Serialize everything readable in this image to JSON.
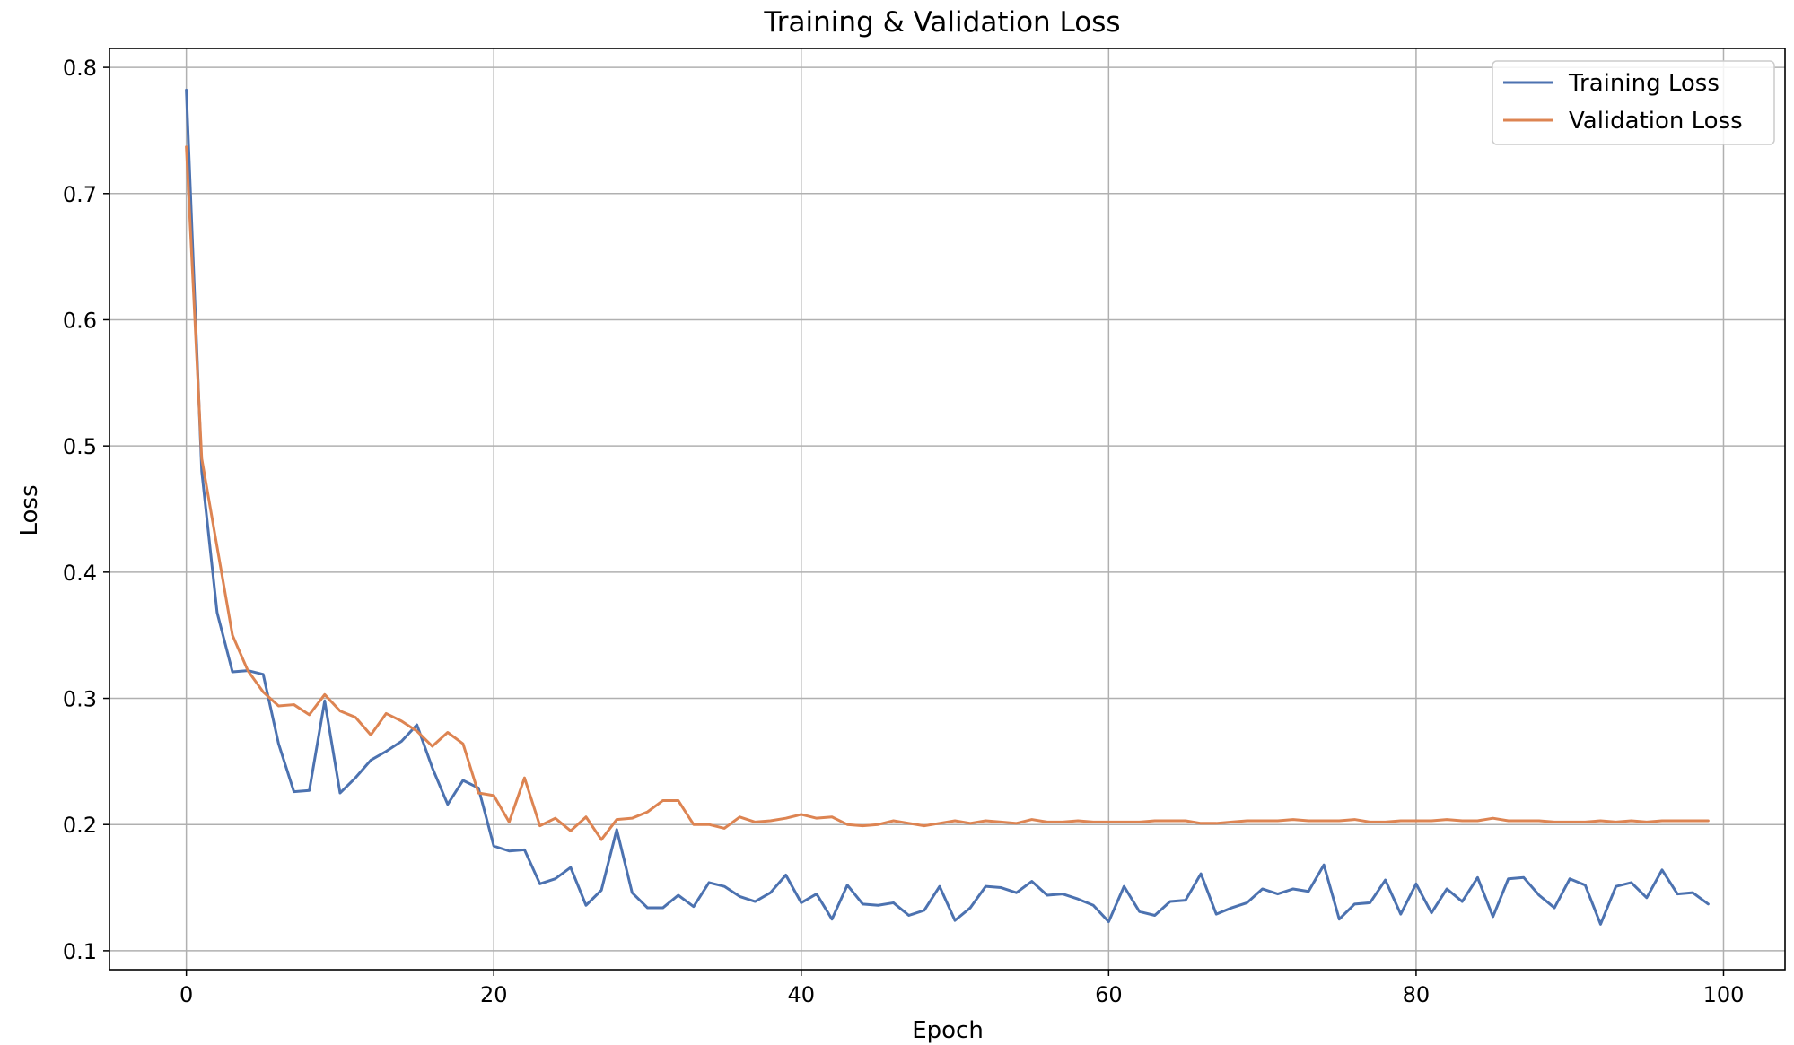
{
  "chart_data": {
    "type": "line",
    "title": "Training & Validation Loss",
    "xlabel": "Epoch",
    "ylabel": "Loss",
    "xlim": [
      -5,
      104
    ],
    "ylim": [
      0.085,
      0.815
    ],
    "xticks": [
      0,
      20,
      40,
      60,
      80,
      100
    ],
    "yticks": [
      0.1,
      0.2,
      0.3,
      0.4,
      0.5,
      0.6,
      0.7,
      0.8
    ],
    "grid": true,
    "legend_position": "top-right",
    "colors": {
      "training": "#4c72b0",
      "validation": "#dd8452"
    },
    "x": [
      0,
      1,
      2,
      3,
      4,
      5,
      6,
      7,
      8,
      9,
      10,
      11,
      12,
      13,
      14,
      15,
      16,
      17,
      18,
      19,
      20,
      21,
      22,
      23,
      24,
      25,
      26,
      27,
      28,
      29,
      30,
      31,
      32,
      33,
      34,
      35,
      36,
      37,
      38,
      39,
      40,
      41,
      42,
      43,
      44,
      45,
      46,
      47,
      48,
      49,
      50,
      51,
      52,
      53,
      54,
      55,
      56,
      57,
      58,
      59,
      60,
      61,
      62,
      63,
      64,
      65,
      66,
      67,
      68,
      69,
      70,
      71,
      72,
      73,
      74,
      75,
      76,
      77,
      78,
      79,
      80,
      81,
      82,
      83,
      84,
      85,
      86,
      87,
      88,
      89,
      90,
      91,
      92,
      93,
      94,
      95,
      96,
      97,
      98,
      99
    ],
    "series": [
      {
        "name": "Training Loss",
        "values": [
          0.782,
          0.48,
          0.368,
          0.321,
          0.322,
          0.319,
          0.264,
          0.226,
          0.227,
          0.298,
          0.225,
          0.237,
          0.251,
          0.258,
          0.266,
          0.279,
          0.245,
          0.216,
          0.235,
          0.229,
          0.183,
          0.179,
          0.18,
          0.153,
          0.157,
          0.166,
          0.136,
          0.148,
          0.196,
          0.146,
          0.134,
          0.134,
          0.144,
          0.135,
          0.154,
          0.151,
          0.143,
          0.139,
          0.146,
          0.16,
          0.138,
          0.145,
          0.125,
          0.152,
          0.137,
          0.136,
          0.138,
          0.128,
          0.132,
          0.151,
          0.124,
          0.134,
          0.151,
          0.15,
          0.146,
          0.155,
          0.144,
          0.145,
          0.141,
          0.136,
          0.123,
          0.151,
          0.131,
          0.128,
          0.139,
          0.14,
          0.161,
          0.129,
          0.134,
          0.138,
          0.149,
          0.145,
          0.149,
          0.147,
          0.168,
          0.125,
          0.137,
          0.138,
          0.156,
          0.129,
          0.153,
          0.13,
          0.149,
          0.139,
          0.158,
          0.127,
          0.157,
          0.158,
          0.144,
          0.134,
          0.157,
          0.152,
          0.121,
          0.151,
          0.154,
          0.142,
          0.164,
          0.145,
          0.146,
          0.137
        ]
      },
      {
        "name": "Validation Loss",
        "values": [
          0.737,
          0.49,
          0.42,
          0.35,
          0.322,
          0.305,
          0.294,
          0.295,
          0.287,
          0.303,
          0.29,
          0.285,
          0.271,
          0.288,
          0.282,
          0.274,
          0.262,
          0.273,
          0.264,
          0.225,
          0.223,
          0.202,
          0.237,
          0.199,
          0.205,
          0.195,
          0.206,
          0.188,
          0.204,
          0.205,
          0.21,
          0.219,
          0.219,
          0.2,
          0.2,
          0.197,
          0.206,
          0.202,
          0.203,
          0.205,
          0.208,
          0.205,
          0.206,
          0.2,
          0.199,
          0.2,
          0.203,
          0.201,
          0.199,
          0.201,
          0.203,
          0.201,
          0.203,
          0.202,
          0.201,
          0.204,
          0.202,
          0.202,
          0.203,
          0.202,
          0.202,
          0.202,
          0.202,
          0.203,
          0.203,
          0.203,
          0.201,
          0.201,
          0.202,
          0.203,
          0.203,
          0.203,
          0.204,
          0.203,
          0.203,
          0.203,
          0.204,
          0.202,
          0.202,
          0.203,
          0.203,
          0.203,
          0.204,
          0.203,
          0.203,
          0.205,
          0.203,
          0.203,
          0.203,
          0.202,
          0.202,
          0.202,
          0.203,
          0.202,
          0.203,
          0.202,
          0.203,
          0.203,
          0.203,
          0.203
        ]
      }
    ]
  }
}
